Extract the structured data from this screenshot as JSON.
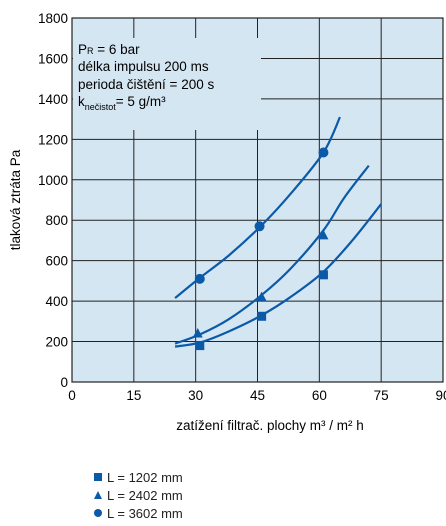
{
  "chart_data": {
    "type": "line",
    "xlabel": "zatížení filtrač. plochy  m³ / m² h",
    "ylabel": "tlaková ztráta  Pa",
    "xlim": [
      0,
      90
    ],
    "ylim": [
      0,
      1800
    ],
    "x_ticks": [
      "0",
      "15",
      "30",
      "45",
      "60",
      "75",
      "90"
    ],
    "y_ticks": [
      "0",
      "200",
      "400",
      "600",
      "800",
      "1000",
      "1200",
      "1400",
      "1600",
      "1800"
    ],
    "grid": true,
    "annotation": [
      "PR = 6 bar",
      "délka impulsu 200 ms",
      "perioda čištění = 200 s",
      "knečistot = 5 g/m³"
    ],
    "annotation_parts": {
      "pr_main": "P",
      "pr_sub": "R",
      "pr_rest": " = 6 bar",
      "line2": "délka impulsu 200 ms",
      "line3": "perioda čištění = 200 s",
      "k_main": "k",
      "k_sub": "nečistot",
      "k_rest": "= 5 g/m³"
    },
    "legend_position": "bottom-left",
    "series": [
      {
        "name": "L = 1202 mm",
        "marker": "square",
        "points": [
          [
            31,
            180
          ],
          [
            46,
            325
          ],
          [
            61,
            530
          ]
        ],
        "curve": [
          [
            25,
            175
          ],
          [
            31,
            195
          ],
          [
            38,
            250
          ],
          [
            46,
            330
          ],
          [
            53,
            420
          ],
          [
            61,
            545
          ],
          [
            68,
            700
          ],
          [
            75,
            880
          ]
        ]
      },
      {
        "name": "L = 2402 mm",
        "marker": "triangle",
        "points": [
          [
            30.5,
            240
          ],
          [
            46,
            420
          ],
          [
            61,
            725
          ]
        ],
        "curve": [
          [
            25,
            190
          ],
          [
            31,
            235
          ],
          [
            38,
            310
          ],
          [
            46,
            430
          ],
          [
            53,
            560
          ],
          [
            61,
            750
          ],
          [
            66,
            910
          ],
          [
            72,
            1070
          ]
        ]
      },
      {
        "name": "L = 3602 mm",
        "marker": "circle",
        "points": [
          [
            31,
            510
          ],
          [
            45.5,
            770
          ],
          [
            61,
            1135
          ]
        ],
        "curve": [
          [
            25,
            415
          ],
          [
            31,
            515
          ],
          [
            38,
            625
          ],
          [
            46,
            775
          ],
          [
            53,
            930
          ],
          [
            61,
            1135
          ],
          [
            65,
            1310
          ]
        ]
      }
    ],
    "colors": {
      "plot_bg": "#d5e6f3",
      "line": "#0b5aa8",
      "grid": "#222222"
    }
  }
}
